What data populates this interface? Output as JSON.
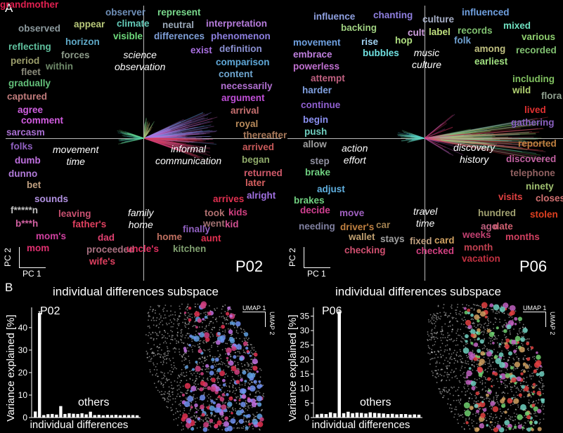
{
  "panel_a_letter": "A",
  "panel_b_letter": "B",
  "panels": [
    {
      "subject": "P02",
      "quadrants": [
        {
          "line1": "science",
          "line2": "observation"
        },
        {
          "line1": "movement",
          "line2": "time"
        },
        {
          "line1": "informal",
          "line2": "communication"
        },
        {
          "line1": "family",
          "line2": "home"
        }
      ],
      "pc_x": "PC 1",
      "pc_y": "PC 2",
      "words": [
        {
          "t": "observer",
          "c": "#6f8fb8"
        },
        {
          "t": "represent",
          "c": "#79d98c"
        },
        {
          "t": "observed",
          "c": "#8d9a9e"
        },
        {
          "t": "appear",
          "c": "#b9c97a"
        },
        {
          "t": "climate",
          "c": "#63c9b7"
        },
        {
          "t": "neutral",
          "c": "#9aa8b8"
        },
        {
          "t": "interpretation",
          "c": "#b77cdd"
        },
        {
          "t": "visible",
          "c": "#6fdb7d"
        },
        {
          "t": "differences",
          "c": "#7f9fd8"
        },
        {
          "t": "phenomenon",
          "c": "#8d7fe0"
        },
        {
          "t": "reflecting",
          "c": "#5fbf9d"
        },
        {
          "t": "horizon",
          "c": "#5fa9c7"
        },
        {
          "t": "exist",
          "c": "#a86fe0"
        },
        {
          "t": "definition",
          "c": "#8a8fd0"
        },
        {
          "t": "period",
          "c": "#9b9d6b"
        },
        {
          "t": "forces",
          "c": "#8d9b8a"
        },
        {
          "t": "within",
          "c": "#6f8a6a"
        },
        {
          "t": "fleet",
          "c": "#8a8a7a"
        },
        {
          "t": "comparison",
          "c": "#5fa8d8"
        },
        {
          "t": "content",
          "c": "#6fa6d0"
        },
        {
          "t": "gradually",
          "c": "#63c07a"
        },
        {
          "t": "necessarily",
          "c": "#b06fd0"
        },
        {
          "t": "captured",
          "c": "#c07b7b"
        },
        {
          "t": "argument",
          "c": "#c04fd8"
        },
        {
          "t": "agree",
          "c": "#cf5fe0"
        },
        {
          "t": "arrival",
          "c": "#c56f6f"
        },
        {
          "t": "comment",
          "c": "#d25ce0"
        },
        {
          "t": "royal",
          "c": "#b88a5a"
        },
        {
          "t": "sarcasm",
          "c": "#a86fd0"
        },
        {
          "t": "thereafter",
          "c": "#a8795a"
        },
        {
          "t": "folks",
          "c": "#9060c0"
        },
        {
          "t": "arrived",
          "c": "#c85a5a"
        },
        {
          "t": "dumb",
          "c": "#c070e0"
        },
        {
          "t": "began",
          "c": "#8faa6a"
        },
        {
          "t": "dunno",
          "c": "#b07ad8"
        },
        {
          "t": "returned",
          "c": "#d05a6a"
        },
        {
          "t": "bet",
          "c": "#c0a080"
        },
        {
          "t": "later",
          "c": "#d86060"
        },
        {
          "t": "sounds",
          "c": "#b090e0"
        },
        {
          "t": "arrives",
          "c": "#e03050"
        },
        {
          "t": "alright",
          "c": "#a070e0"
        },
        {
          "t": "f*****n",
          "c": "#c0c0c0"
        },
        {
          "t": "leaving",
          "c": "#c85070"
        },
        {
          "t": "took",
          "c": "#b07070"
        },
        {
          "t": "kids",
          "c": "#d04080"
        },
        {
          "t": "b***h",
          "c": "#d060a0"
        },
        {
          "t": "father's",
          "c": "#e04060"
        },
        {
          "t": "went",
          "c": "#a07070"
        },
        {
          "t": "kid",
          "c": "#d05090"
        },
        {
          "t": "mom's",
          "c": "#d040a0"
        },
        {
          "t": "finally",
          "c": "#9060c0"
        },
        {
          "t": "dad",
          "c": "#e04070"
        },
        {
          "t": "home",
          "c": "#c07060"
        },
        {
          "t": "aunt",
          "c": "#e03050"
        },
        {
          "t": "mom",
          "c": "#e03070"
        },
        {
          "t": "proceeded",
          "c": "#a87080"
        },
        {
          "t": "uncle's",
          "c": "#e03060"
        },
        {
          "t": "kitchen",
          "c": "#80a070"
        },
        {
          "t": "wife's",
          "c": "#e04060"
        },
        {
          "t": "grandmother",
          "c": "#e02050"
        }
      ]
    },
    {
      "subject": "P06",
      "quadrants": [
        {
          "line1": "music",
          "line2": "culture"
        },
        {
          "line1": "action",
          "line2": "effort"
        },
        {
          "line1": "discovery",
          "line2": "history"
        },
        {
          "line1": "travel",
          "line2": "time"
        }
      ],
      "pc_x": "PC 1",
      "pc_y": "PC 2",
      "words": [
        {
          "t": "influence",
          "c": "#8fa0e0"
        },
        {
          "t": "chanting",
          "c": "#8f7fe0"
        },
        {
          "t": "culture",
          "c": "#a8b0c8"
        },
        {
          "t": "influenced",
          "c": "#6fa0e0"
        },
        {
          "t": "backing",
          "c": "#9fd080"
        },
        {
          "t": "mixed",
          "c": "#6fe0c0"
        },
        {
          "t": "cult",
          "c": "#d0a0e0"
        },
        {
          "t": "label",
          "c": "#c0e07f"
        },
        {
          "t": "records",
          "c": "#7fc06f"
        },
        {
          "t": "various",
          "c": "#8fd06f"
        },
        {
          "t": "movement",
          "c": "#6fa0e0"
        },
        {
          "t": "rise",
          "c": "#a0d0f0"
        },
        {
          "t": "hop",
          "c": "#b0e080"
        },
        {
          "t": "folk",
          "c": "#6fa0d0"
        },
        {
          "t": "among",
          "c": "#c0c080"
        },
        {
          "t": "recorded",
          "c": "#80c070"
        },
        {
          "t": "embrace",
          "c": "#c080e0"
        },
        {
          "t": "bubbles",
          "c": "#6fe0e0"
        },
        {
          "t": "earliest",
          "c": "#a0e080"
        },
        {
          "t": "powerless",
          "c": "#c070d0"
        },
        {
          "t": "attempt",
          "c": "#c06080"
        },
        {
          "t": "including",
          "c": "#80c060"
        },
        {
          "t": "harder",
          "c": "#80a0e0"
        },
        {
          "t": "wild",
          "c": "#b0d070"
        },
        {
          "t": "flora",
          "c": "#90a090"
        },
        {
          "t": "continue",
          "c": "#9060d0"
        },
        {
          "t": "lived",
          "c": "#e03030"
        },
        {
          "t": "begin",
          "c": "#8a8ff0"
        },
        {
          "t": "gathering",
          "c": "#8a60c0"
        },
        {
          "t": "push",
          "c": "#6fd0c0"
        },
        {
          "t": "allow",
          "c": "#a0a0a0"
        },
        {
          "t": "reported",
          "c": "#c08040"
        },
        {
          "t": "step",
          "c": "#9090a0"
        },
        {
          "t": "discovered",
          "c": "#c060a0"
        },
        {
          "t": "brake",
          "c": "#6fd080"
        },
        {
          "t": "telephone",
          "c": "#906060"
        },
        {
          "t": "adjust",
          "c": "#60b0e0"
        },
        {
          "t": "ninety",
          "c": "#a0c070"
        },
        {
          "t": "brakes",
          "c": "#70d080"
        },
        {
          "t": "visits",
          "c": "#e04040"
        },
        {
          "t": "closest",
          "c": "#d07070"
        },
        {
          "t": "decide",
          "c": "#d04090"
        },
        {
          "t": "move",
          "c": "#a060c0"
        },
        {
          "t": "stolen",
          "c": "#e04020"
        },
        {
          "t": "car",
          "c": "#a08050"
        },
        {
          "t": "hundred",
          "c": "#a0a070"
        },
        {
          "t": "needing",
          "c": "#8080a0"
        },
        {
          "t": "driver's",
          "c": "#c08040"
        },
        {
          "t": "ago",
          "c": "#c06080"
        },
        {
          "t": "date",
          "c": "#d06070"
        },
        {
          "t": "wallet",
          "c": "#c0a070"
        },
        {
          "t": "stays",
          "c": "#a0a0a0"
        },
        {
          "t": "fixed",
          "c": "#c0a080"
        },
        {
          "t": "card",
          "c": "#d0a060"
        },
        {
          "t": "weeks",
          "c": "#c04070"
        },
        {
          "t": "months",
          "c": "#d04060"
        },
        {
          "t": "checking",
          "c": "#d05070"
        },
        {
          "t": "checked",
          "c": "#d04080"
        },
        {
          "t": "month",
          "c": "#c04050"
        },
        {
          "t": "vacation",
          "c": "#c03040"
        }
      ]
    }
  ],
  "panel_b": [
    {
      "title": "individual differences subspace",
      "subject": "P02",
      "others_label": "others",
      "umap_x": "UMAP 1",
      "umap_y": "UMAP 2",
      "chart_data": {
        "type": "bar",
        "title": "individual differences subspace",
        "ylabel": "Variance explained [%]",
        "xlabel": "individual differences",
        "yticks": [
          0,
          10,
          20,
          30,
          40
        ],
        "ylim": [
          0,
          49
        ],
        "values": [
          2.7,
          46.5,
          1.1,
          1.5,
          1.6,
          1.3,
          5.1,
          1.6,
          1.9,
          1.7,
          1.6,
          1.9,
          1.4,
          2.6,
          1.1,
          1.2,
          1.0,
          1.2,
          1.1,
          1.2,
          1.0,
          1.1,
          1.1,
          1.1,
          1.0
        ],
        "errors": [
          0.2,
          0.6,
          0.1,
          0.1,
          0.1,
          0.1,
          0.2,
          0.1,
          0.1,
          0.1,
          0.1,
          0.1,
          0.1,
          0.2,
          0.1,
          0.1,
          0.1,
          0.1,
          0.1,
          0.1,
          0.1,
          0.1,
          0.1,
          0.1,
          0.1
        ]
      }
    },
    {
      "title": "individual differences subspace",
      "subject": "P06",
      "others_label": "others",
      "umap_x": "UMAP 1",
      "umap_y": "UMAP 2",
      "chart_data": {
        "type": "bar",
        "title": "individual differences subspace",
        "ylabel": "Variance explained [%]",
        "xlabel": "individual differences",
        "yticks": [
          0,
          5,
          10,
          15,
          20,
          25,
          30,
          35
        ],
        "ylim": [
          0,
          38
        ],
        "values": [
          1.1,
          1.3,
          1.2,
          1.8,
          1.5,
          36.6,
          1.5,
          2.0,
          1.5,
          1.7,
          1.6,
          1.4,
          1.8,
          1.6,
          1.5,
          1.4,
          1.2,
          1.3,
          1.1,
          1.2,
          1.2,
          1.0,
          1.1,
          1.0
        ],
        "errors": [
          0.1,
          0.1,
          0.1,
          0.1,
          0.1,
          0.6,
          0.1,
          0.1,
          0.1,
          0.1,
          0.1,
          0.1,
          0.1,
          0.1,
          0.1,
          0.1,
          0.1,
          0.1,
          0.1,
          0.1,
          0.1,
          0.1,
          0.1,
          0.1
        ]
      }
    }
  ]
}
